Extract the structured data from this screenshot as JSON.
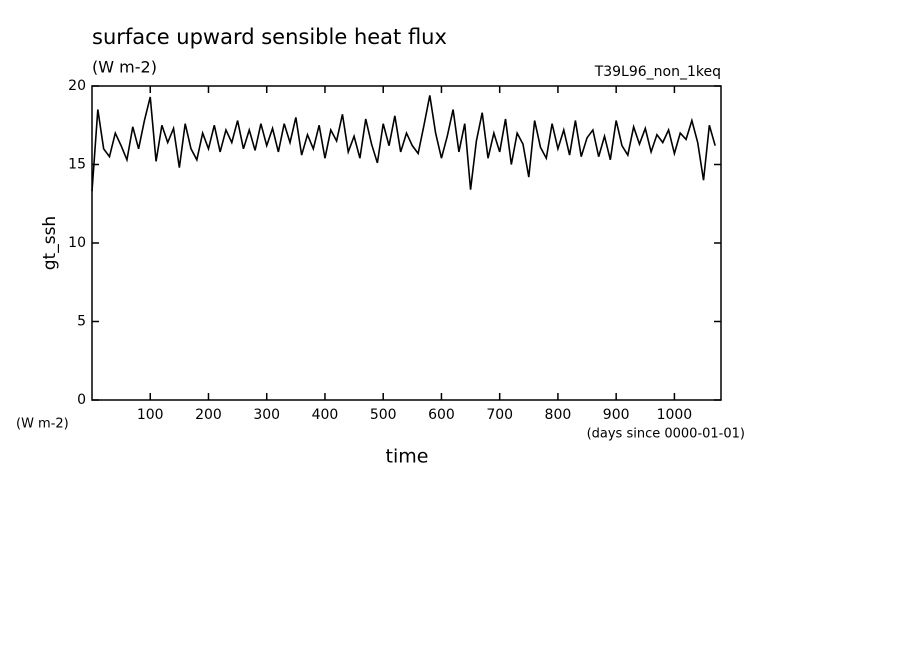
{
  "chart_data": {
    "type": "line",
    "title": "surface upward sensible heat flux",
    "subtitle": "(W m-2)",
    "annotation": "T39L96_non_1keq",
    "y_label": "gt_ssh",
    "y_unit": "(W m-2)",
    "x_label": "time",
    "x_unit": "(days since 0000-01-01)",
    "xlim": [
      0,
      1080
    ],
    "ylim": [
      0,
      20
    ],
    "xticks": [
      100,
      200,
      300,
      400,
      500,
      600,
      700,
      800,
      900,
      1000
    ],
    "yticks": [
      0,
      5,
      10,
      15,
      20
    ],
    "color": "#000000",
    "x": [
      0,
      10,
      20,
      30,
      40,
      50,
      60,
      70,
      80,
      90,
      100,
      110,
      120,
      130,
      140,
      150,
      160,
      170,
      180,
      190,
      200,
      210,
      220,
      230,
      240,
      250,
      260,
      270,
      280,
      290,
      300,
      310,
      320,
      330,
      340,
      350,
      360,
      370,
      380,
      390,
      400,
      410,
      420,
      430,
      440,
      450,
      460,
      470,
      480,
      490,
      500,
      510,
      520,
      530,
      540,
      550,
      560,
      570,
      580,
      590,
      600,
      610,
      620,
      630,
      640,
      650,
      660,
      670,
      680,
      690,
      700,
      710,
      720,
      730,
      740,
      750,
      760,
      770,
      780,
      790,
      800,
      810,
      820,
      830,
      840,
      850,
      860,
      870,
      880,
      890,
      900,
      910,
      920,
      930,
      940,
      950,
      960,
      970,
      980,
      990,
      1000,
      1010,
      1020,
      1030,
      1040,
      1050,
      1060,
      1070
    ],
    "values": [
      13.3,
      18.5,
      16,
      15.5,
      17,
      16.2,
      15.3,
      17.4,
      16,
      17.8,
      19.3,
      15.2,
      17.5,
      16.4,
      17.3,
      14.8,
      17.6,
      16,
      15.3,
      17,
      16,
      17.5,
      15.8,
      17.2,
      16.4,
      17.8,
      16,
      17.2,
      15.9,
      17.6,
      16.2,
      17.3,
      15.8,
      17.6,
      16.4,
      18,
      15.6,
      16.9,
      16,
      17.5,
      15.4,
      17.2,
      16.5,
      18.2,
      15.8,
      16.8,
      15.4,
      17.9,
      16.3,
      15.1,
      17.6,
      16.2,
      18.1,
      15.8,
      17,
      16.2,
      15.7,
      17.5,
      19.4,
      17,
      15.4,
      16.8,
      18.5,
      15.8,
      17.6,
      13.4,
      16.5,
      18.3,
      15.4,
      17,
      15.8,
      17.9,
      15,
      17,
      16.3,
      14.2,
      17.8,
      16.1,
      15.4,
      17.6,
      16,
      17.2,
      15.6,
      17.8,
      15.5,
      16.7,
      17.2,
      15.5,
      16.8,
      15.3,
      17.8,
      16.2,
      15.6,
      17.4,
      16.3,
      17.3,
      15.8,
      16.9,
      16.4,
      17.2,
      15.7,
      17,
      16.6,
      17.8,
      16.4,
      14,
      17.5,
      16.2
    ]
  }
}
